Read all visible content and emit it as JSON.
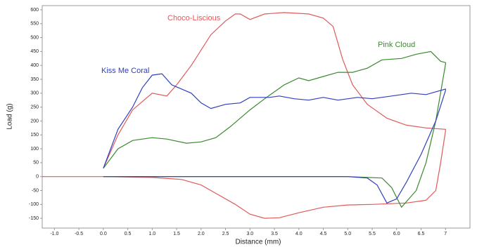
{
  "chart_data": {
    "type": "line",
    "xlabel": "Distance (mm)",
    "ylabel": "Load (g)",
    "xlim": [
      -1.25,
      7.5
    ],
    "ylim": [
      -185,
      615
    ],
    "xticks": [
      {
        "value": -1,
        "label": "-1.0"
      },
      -0.5,
      {
        "value": 0,
        "label": "0.0"
      },
      0.5,
      {
        "value": 1,
        "label": "1.0"
      },
      1.5,
      {
        "value": 2,
        "label": "2.0"
      },
      2.5,
      {
        "value": 3,
        "label": "3.0"
      },
      3.5,
      {
        "value": 4,
        "label": "4.0"
      },
      4.5,
      {
        "value": 5,
        "label": "5.0"
      },
      5.5,
      {
        "value": 6,
        "label": "6.0"
      },
      6.5,
      7
    ],
    "yticks": [
      -150,
      -100,
      -50,
      0,
      50,
      100,
      150,
      200,
      250,
      300,
      350,
      400,
      450,
      500,
      550,
      600
    ],
    "grid": false,
    "series": [
      {
        "name": "Choco-Liscious",
        "color": "#e05a5a",
        "x": [
          0,
          0.3,
          0.6,
          1.0,
          1.3,
          1.5,
          1.8,
          2.2,
          2.5,
          2.7,
          2.8,
          3.0,
          3.3,
          3.7,
          4.2,
          4.5,
          4.7,
          4.9,
          5.1,
          5.4,
          5.8,
          6.2,
          6.6,
          7.0,
          7.0,
          6.9,
          6.8,
          6.6,
          6.2,
          5.5,
          5.0,
          4.5,
          4.0,
          3.6,
          3.3,
          3.0,
          2.7,
          2.3,
          2.0,
          1.6,
          1.0,
          0,
          -1.25
        ],
        "values": [
          30,
          150,
          240,
          300,
          290,
          330,
          400,
          510,
          560,
          585,
          585,
          565,
          585,
          590,
          585,
          570,
          540,
          420,
          330,
          260,
          210,
          185,
          175,
          170,
          165,
          50,
          -50,
          -85,
          -95,
          -100,
          -102,
          -110,
          -130,
          -148,
          -150,
          -135,
          -100,
          -60,
          -30,
          -10,
          -3,
          0,
          0
        ]
      },
      {
        "name": "Pink Cloud",
        "color": "#3a8a2e",
        "x": [
          0,
          0.3,
          0.6,
          1.0,
          1.3,
          1.7,
          2.0,
          2.3,
          2.6,
          3.0,
          3.3,
          3.7,
          4.0,
          4.2,
          4.5,
          4.8,
          5.1,
          5.4,
          5.7,
          6.1,
          6.4,
          6.7,
          6.9,
          7.0,
          7.0,
          6.8,
          6.6,
          6.4,
          6.1,
          5.9,
          5.7,
          5.0,
          0
        ],
        "values": [
          30,
          100,
          130,
          140,
          135,
          120,
          125,
          140,
          180,
          240,
          280,
          330,
          355,
          345,
          360,
          375,
          375,
          390,
          420,
          425,
          440,
          450,
          415,
          410,
          405,
          200,
          50,
          -50,
          -110,
          -40,
          -5,
          0,
          0
        ]
      },
      {
        "name": "Kiss Me Coral",
        "color": "#2f3fc0",
        "x": [
          0,
          0.3,
          0.6,
          0.8,
          1.0,
          1.2,
          1.4,
          1.8,
          2.0,
          2.2,
          2.5,
          2.8,
          3.0,
          3.4,
          3.6,
          3.9,
          4.2,
          4.5,
          4.8,
          5.2,
          5.5,
          5.9,
          6.3,
          6.6,
          7.0,
          7.0,
          6.8,
          6.5,
          6.2,
          6.0,
          5.8,
          5.6,
          5.4,
          5.0,
          0
        ],
        "values": [
          30,
          170,
          250,
          320,
          365,
          370,
          330,
          300,
          265,
          245,
          260,
          265,
          285,
          285,
          290,
          280,
          275,
          285,
          275,
          285,
          280,
          290,
          300,
          295,
          315,
          310,
          200,
          80,
          -20,
          -80,
          -95,
          -30,
          -5,
          0,
          0
        ]
      }
    ]
  }
}
